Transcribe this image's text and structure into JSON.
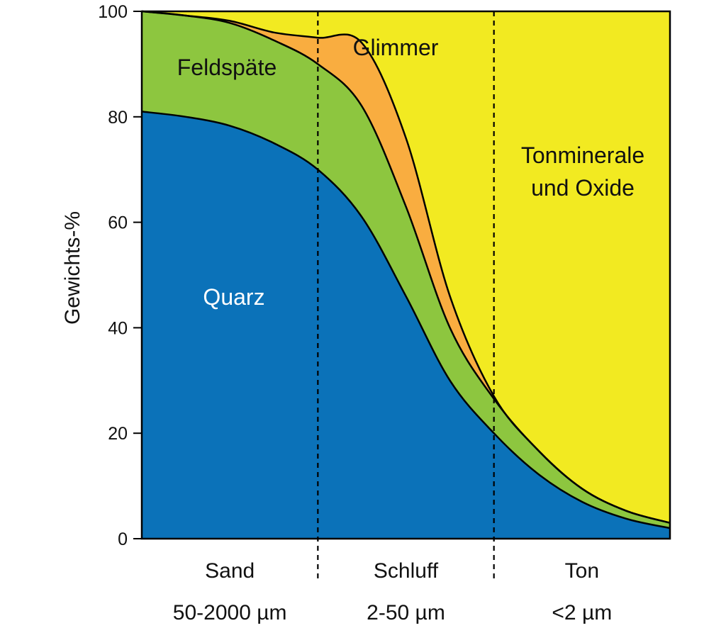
{
  "chart_data": {
    "type": "area",
    "stacked": true,
    "ylabel": "Gewichts-%",
    "ylim": [
      0,
      100
    ],
    "yticks": [
      0,
      20,
      40,
      60,
      80,
      100
    ],
    "x_bands": [
      {
        "name": "Sand",
        "range": "50-2000 µm",
        "x_start": 0,
        "x_end": 1
      },
      {
        "name": "Schluff",
        "range": "2-50 µm",
        "x_start": 1,
        "x_end": 2
      },
      {
        "name": "Ton",
        "range": "<2 µm",
        "x_start": 2,
        "x_end": 3
      }
    ],
    "xlim": [
      0,
      3
    ],
    "x": [
      0,
      0.25,
      0.5,
      0.75,
      1,
      1.25,
      1.5,
      1.75,
      2,
      2.25,
      2.5,
      2.75,
      3
    ],
    "series": [
      {
        "name": "Quarz",
        "color": "#0b72b9",
        "label_color": "#ffffff",
        "values": [
          81,
          80,
          78.3,
          75,
          70,
          61,
          46,
          30,
          20,
          12.3,
          7,
          3.8,
          2
        ]
      },
      {
        "name": "Feldspäte",
        "color": "#8dc63f",
        "label_color": "#111111",
        "values": [
          19,
          19.2,
          19.5,
          19.5,
          20,
          21,
          17,
          10,
          6.5,
          4.5,
          2.5,
          1.5,
          1
        ]
      },
      {
        "name": "Glimmer",
        "color": "#f9ad40",
        "label_color": "#111111",
        "values": [
          0,
          0,
          0.4,
          1.5,
          5,
          12,
          13,
          6,
          0.5,
          0,
          0,
          0,
          0
        ]
      },
      {
        "name": "Tonminerale und Oxide",
        "color": "#f2ea21",
        "label_color": "#111111",
        "label_lines": [
          "Tonminerale",
          "und Oxide"
        ],
        "values": [
          0,
          0.8,
          1.8,
          4,
          5,
          6,
          24,
          54,
          73,
          83.2,
          90.5,
          94.7,
          97
        ]
      }
    ],
    "grid": false,
    "legend": "none"
  }
}
